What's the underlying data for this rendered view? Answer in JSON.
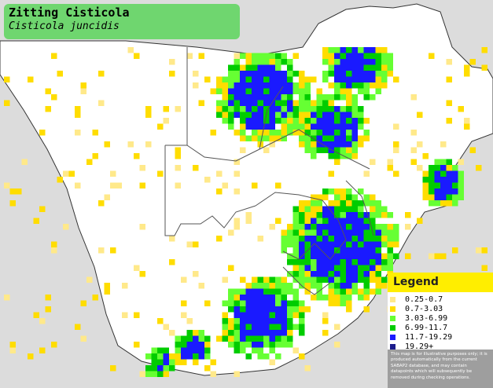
{
  "title": {
    "common_name": "Zitting Cisticola",
    "scientific_name": "Cisticola juncidis"
  },
  "legend": {
    "heading": "Legend",
    "classes": [
      {
        "label": "0.25-0.7",
        "color": "#ffe98a"
      },
      {
        "label": "0.7-3.03",
        "color": "#ffdd00"
      },
      {
        "label": "3.03-6.99",
        "color": "#66ff33"
      },
      {
        "label": "6.99-11.7",
        "color": "#00cc00"
      },
      {
        "label": "11.7-19.29",
        "color": "#1a1aff"
      },
      {
        "label": "19.29+",
        "color": "#1c1c8c"
      }
    ],
    "disclaimer": "This map is for illustrative purposes only; it is produced automatically from the current SABAP2 database, and may contain datapoints which will subsequently be removed during checking operations."
  },
  "colors": {
    "land": "#ffffff",
    "sea": "#dcdcdc",
    "border": "#555555",
    "title_box": "#6fd66f",
    "legend_header": "#ffee00"
  }
}
